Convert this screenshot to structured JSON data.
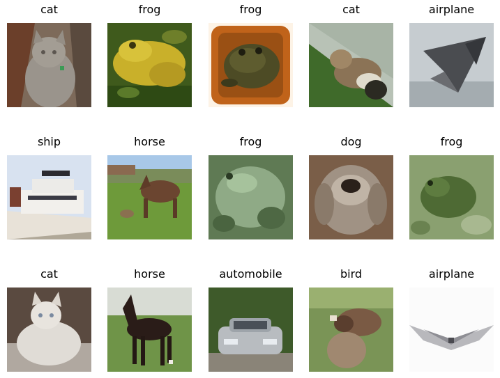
{
  "images": [
    {
      "label": "cat",
      "icon": "gray-cat-photo"
    },
    {
      "label": "frog",
      "icon": "yellow-frog-photo"
    },
    {
      "label": "frog",
      "icon": "brown-frog-photo"
    },
    {
      "label": "cat",
      "icon": "cat-lying-on-grass-photo"
    },
    {
      "label": "airplane",
      "icon": "stealth-jet-photo"
    },
    {
      "label": "ship",
      "icon": "boat-photo"
    },
    {
      "label": "horse",
      "icon": "brown-horse-in-field-photo"
    },
    {
      "label": "frog",
      "icon": "green-frog-photo"
    },
    {
      "label": "dog",
      "icon": "pekingese-dog-photo"
    },
    {
      "label": "frog",
      "icon": "frog-on-leaves-photo"
    },
    {
      "label": "cat",
      "icon": "white-cat-photo"
    },
    {
      "label": "horse",
      "icon": "dark-horse-photo"
    },
    {
      "label": "automobile",
      "icon": "silver-car-photo"
    },
    {
      "label": "bird",
      "icon": "bird-photo"
    },
    {
      "label": "airplane",
      "icon": "white-plane-photo"
    }
  ]
}
